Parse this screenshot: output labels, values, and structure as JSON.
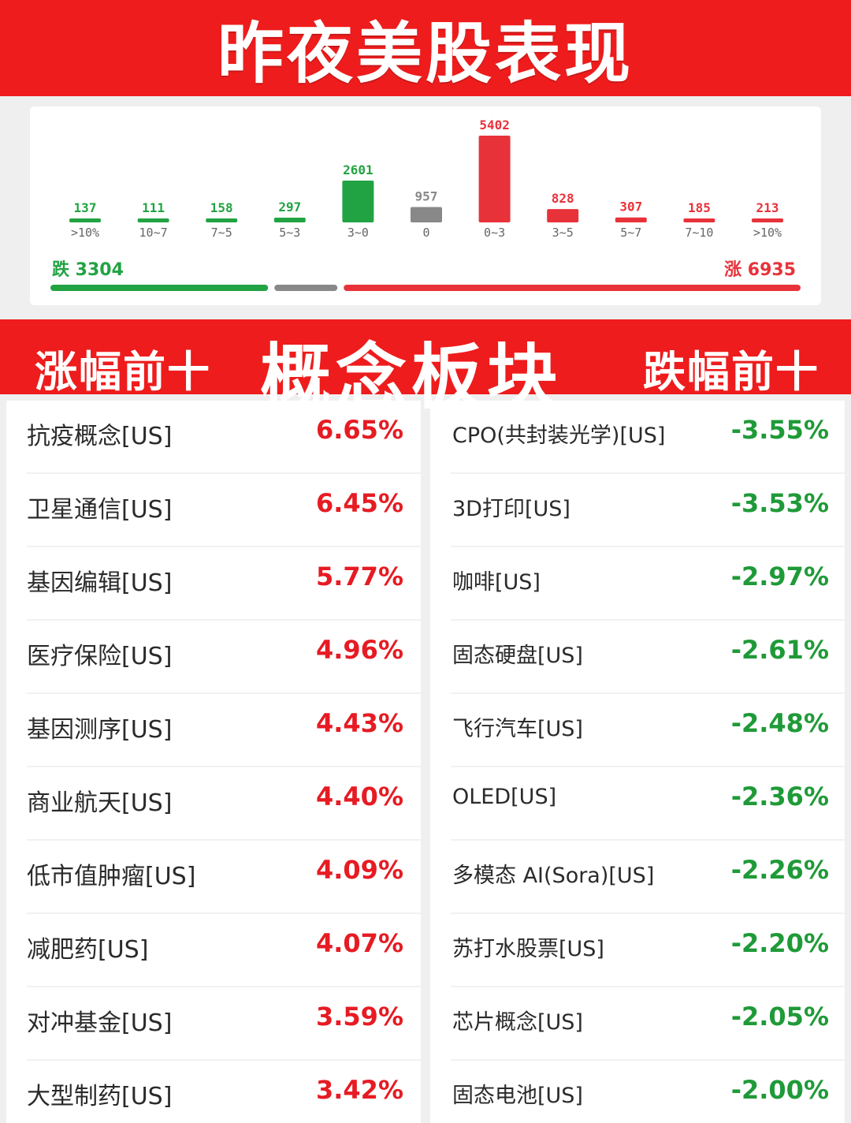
{
  "header": {
    "title": "昨夜美股表现"
  },
  "colors": {
    "red": "#ee1c1c",
    "up_red": "#e8323a",
    "down_green": "#22a343",
    "flat_gray": "#888888"
  },
  "chart_data": {
    "type": "bar",
    "categories": [
      ">10%",
      "10~7",
      "7~5",
      "5~3",
      "3~0",
      "0",
      "0~3",
      "3~5",
      "5~7",
      "7~10",
      ">10%"
    ],
    "values": [
      137,
      111,
      158,
      297,
      2601,
      957,
      5402,
      828,
      307,
      185,
      213
    ],
    "groups": [
      "down",
      "down",
      "down",
      "down",
      "down",
      "flat",
      "up",
      "up",
      "up",
      "up",
      "up"
    ],
    "down_label": "跌 3304",
    "up_label": "涨 6935",
    "down_total": 3304,
    "up_total": 6935
  },
  "banner": {
    "left": "涨幅前十",
    "center": "概念板块",
    "right": "跌幅前十"
  },
  "gainers": [
    {
      "name": "抗疫概念[US]",
      "change": "6.65%"
    },
    {
      "name": "卫星通信[US]",
      "change": "6.45%"
    },
    {
      "name": "基因编辑[US]",
      "change": "5.77%"
    },
    {
      "name": "医疗保险[US]",
      "change": "4.96%"
    },
    {
      "name": "基因测序[US]",
      "change": "4.43%"
    },
    {
      "name": "商业航天[US]",
      "change": "4.40%"
    },
    {
      "name": "低市值肿瘤[US]",
      "change": "4.09%"
    },
    {
      "name": "减肥药[US]",
      "change": "4.07%"
    },
    {
      "name": "对冲基金[US]",
      "change": "3.59%"
    },
    {
      "name": "大型制药[US]",
      "change": "3.42%"
    }
  ],
  "losers": [
    {
      "name": "CPO(共封装光学)[US]",
      "change": "-3.55%"
    },
    {
      "name": "3D打印[US]",
      "change": "-3.53%"
    },
    {
      "name": "咖啡[US]",
      "change": "-2.97%"
    },
    {
      "name": "固态硬盘[US]",
      "change": "-2.61%"
    },
    {
      "name": "飞行汽车[US]",
      "change": "-2.48%"
    },
    {
      "name": "OLED[US]",
      "change": "-2.36%"
    },
    {
      "name": "多模态 AI(Sora)[US]",
      "change": "-2.26%"
    },
    {
      "name": "苏打水股票[US]",
      "change": "-2.20%"
    },
    {
      "name": "芯片概念[US]",
      "change": "-2.05%"
    },
    {
      "name": "固态电池[US]",
      "change": "-2.00%"
    }
  ]
}
